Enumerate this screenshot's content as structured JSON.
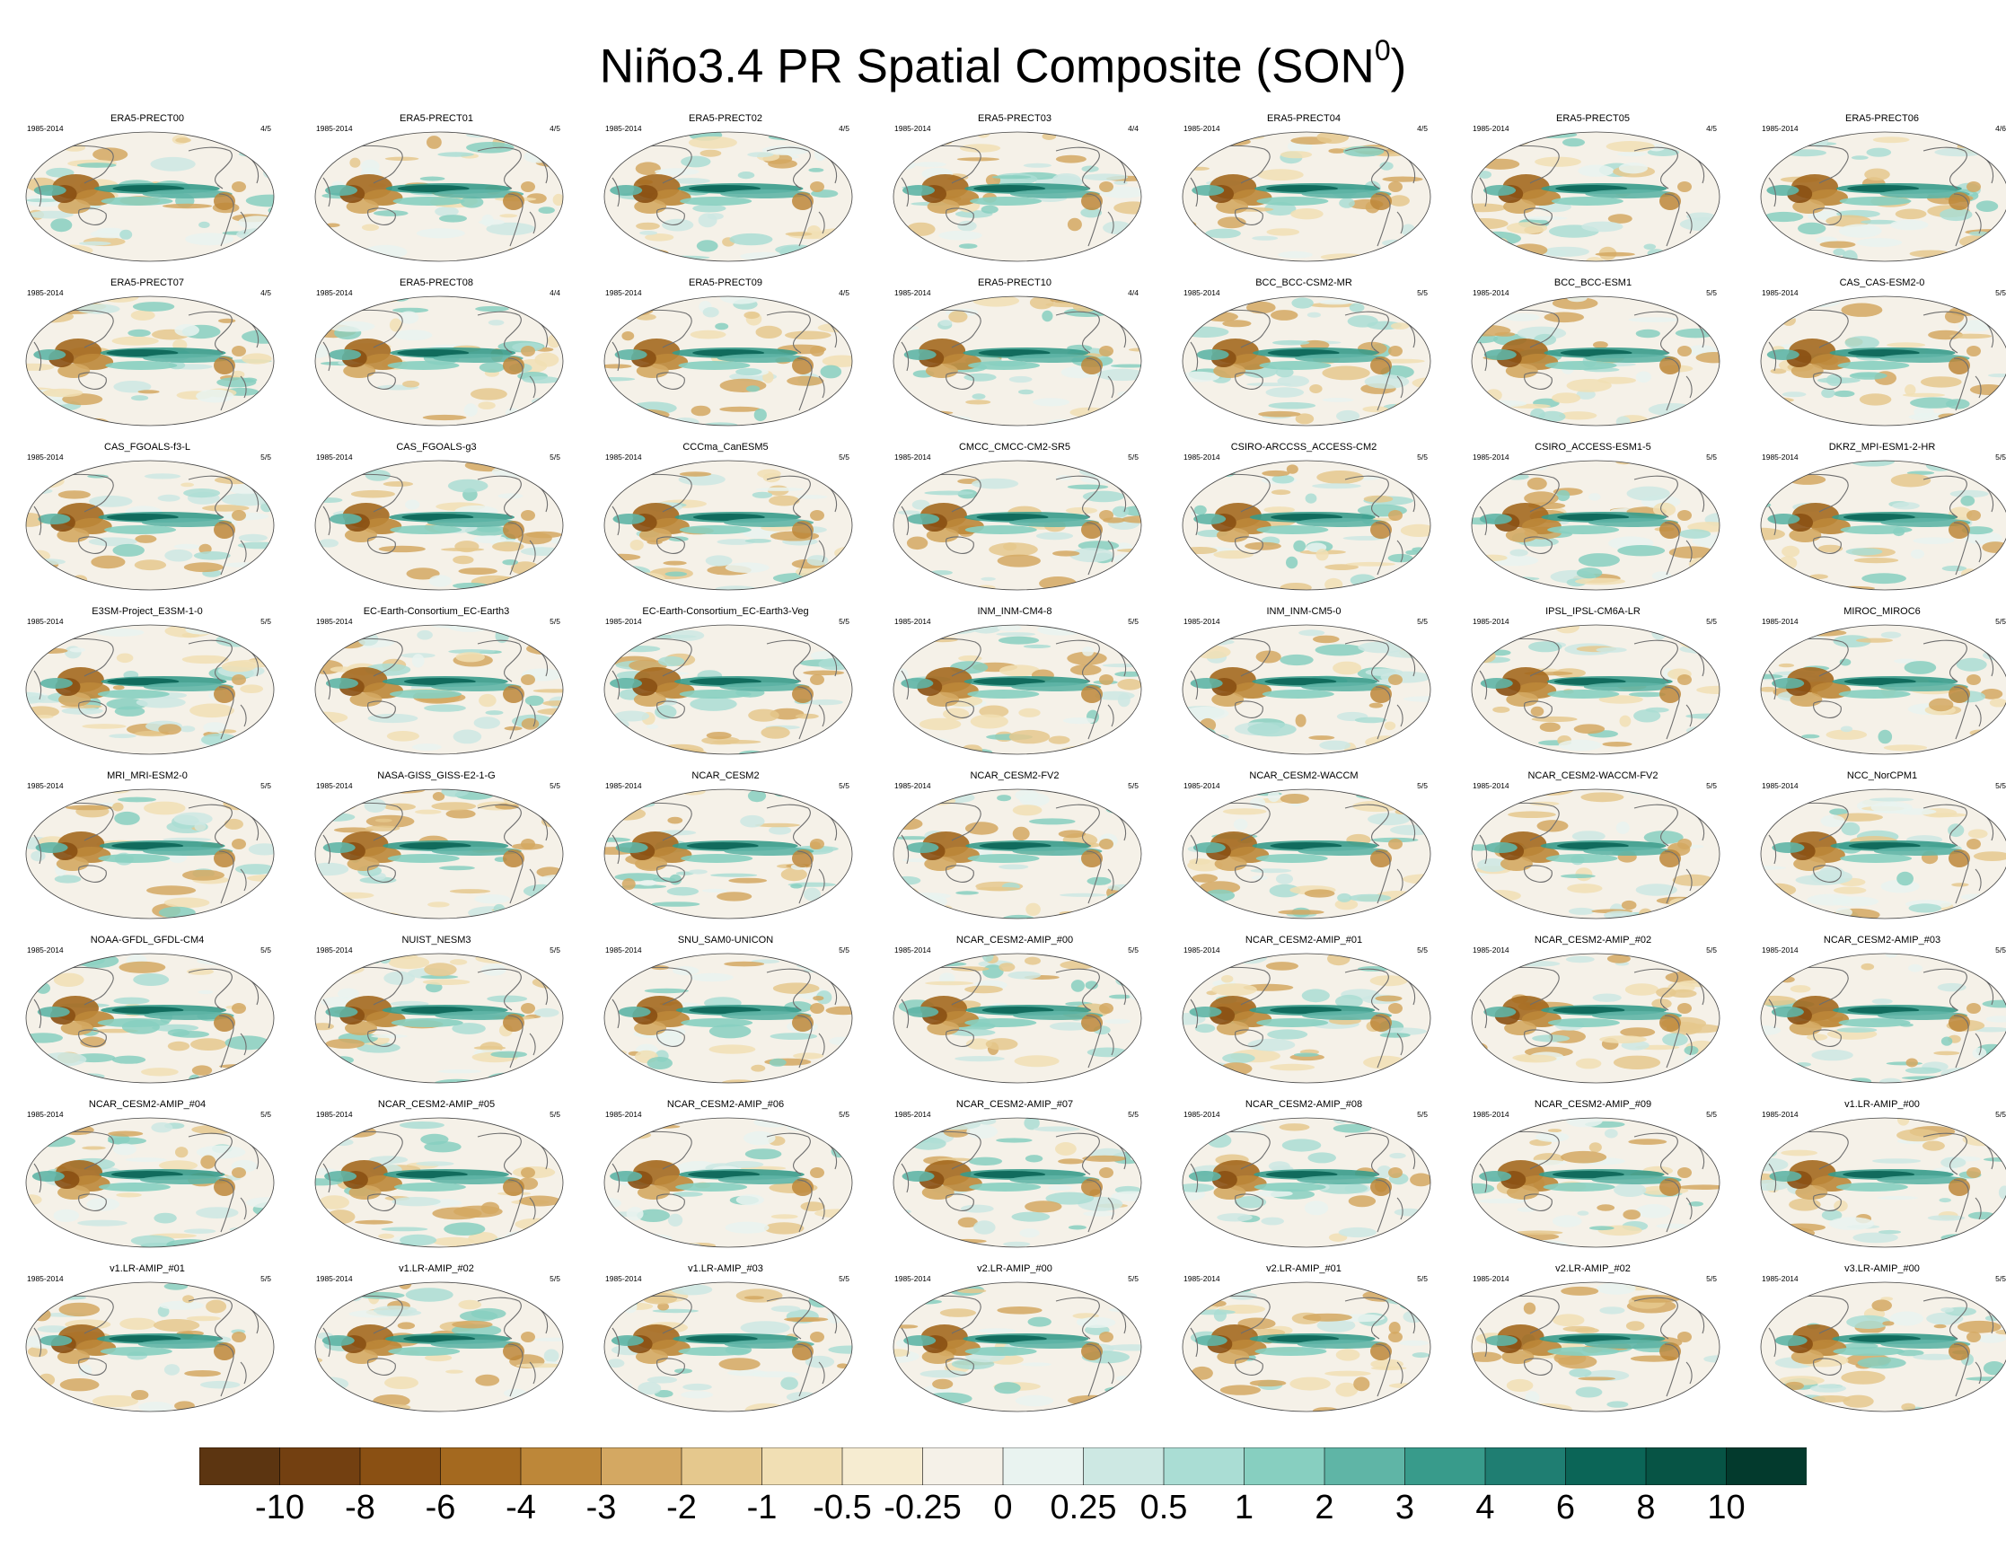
{
  "title": {
    "main": "Niño3.4 PR Spatial Composite (SON",
    "superscript": "0",
    "close": ")"
  },
  "panels": [
    {
      "name": "ERA5-PRECT00",
      "years": "1985-2014",
      "count": "4/5"
    },
    {
      "name": "ERA5-PRECT01",
      "years": "1985-2014",
      "count": "4/5"
    },
    {
      "name": "ERA5-PRECT02",
      "years": "1985-2014",
      "count": "4/5"
    },
    {
      "name": "ERA5-PRECT03",
      "years": "1985-2014",
      "count": "4/4"
    },
    {
      "name": "ERA5-PRECT04",
      "years": "1985-2014",
      "count": "4/5"
    },
    {
      "name": "ERA5-PRECT05",
      "years": "1985-2014",
      "count": "4/5"
    },
    {
      "name": "ERA5-PRECT06",
      "years": "1985-2014",
      "count": "4/6"
    },
    {
      "name": "ERA5-PRECT07",
      "years": "1985-2014",
      "count": "4/5"
    },
    {
      "name": "ERA5-PRECT08",
      "years": "1985-2014",
      "count": "4/4"
    },
    {
      "name": "ERA5-PRECT09",
      "years": "1985-2014",
      "count": "4/5"
    },
    {
      "name": "ERA5-PRECT10",
      "years": "1985-2014",
      "count": "4/4"
    },
    {
      "name": "BCC_BCC-CSM2-MR",
      "years": "1985-2014",
      "count": "5/5"
    },
    {
      "name": "BCC_BCC-ESM1",
      "years": "1985-2014",
      "count": "5/5"
    },
    {
      "name": "CAS_CAS-ESM2-0",
      "years": "1985-2014",
      "count": "5/5"
    },
    {
      "name": "CAS_FGOALS-f3-L",
      "years": "1985-2014",
      "count": "5/5"
    },
    {
      "name": "CAS_FGOALS-g3",
      "years": "1985-2014",
      "count": "5/5"
    },
    {
      "name": "CCCma_CanESM5",
      "years": "1985-2014",
      "count": "5/5"
    },
    {
      "name": "CMCC_CMCC-CM2-SR5",
      "years": "1985-2014",
      "count": "5/5"
    },
    {
      "name": "CSIRO-ARCCSS_ACCESS-CM2",
      "years": "1985-2014",
      "count": "5/5"
    },
    {
      "name": "CSIRO_ACCESS-ESM1-5",
      "years": "1985-2014",
      "count": "5/5"
    },
    {
      "name": "DKRZ_MPI-ESM1-2-HR",
      "years": "1985-2014",
      "count": "5/5"
    },
    {
      "name": "E3SM-Project_E3SM-1-0",
      "years": "1985-2014",
      "count": "5/5"
    },
    {
      "name": "EC-Earth-Consortium_EC-Earth3",
      "years": "1985-2014",
      "count": "5/5"
    },
    {
      "name": "EC-Earth-Consortium_EC-Earth3-Veg",
      "years": "1985-2014",
      "count": "5/5"
    },
    {
      "name": "INM_INM-CM4-8",
      "years": "1985-2014",
      "count": "5/5"
    },
    {
      "name": "INM_INM-CM5-0",
      "years": "1985-2014",
      "count": "5/5"
    },
    {
      "name": "IPSL_IPSL-CM6A-LR",
      "years": "1985-2014",
      "count": "5/5"
    },
    {
      "name": "MIROC_MIROC6",
      "years": "1985-2014",
      "count": "5/5"
    },
    {
      "name": "MRI_MRI-ESM2-0",
      "years": "1985-2014",
      "count": "5/5"
    },
    {
      "name": "NASA-GISS_GISS-E2-1-G",
      "years": "1985-2014",
      "count": "5/5"
    },
    {
      "name": "NCAR_CESM2",
      "years": "1985-2014",
      "count": "5/5"
    },
    {
      "name": "NCAR_CESM2-FV2",
      "years": "1985-2014",
      "count": "5/5"
    },
    {
      "name": "NCAR_CESM2-WACCM",
      "years": "1985-2014",
      "count": "5/5"
    },
    {
      "name": "NCAR_CESM2-WACCM-FV2",
      "years": "1985-2014",
      "count": "5/5"
    },
    {
      "name": "NCC_NorCPM1",
      "years": "1985-2014",
      "count": "5/5"
    },
    {
      "name": "NOAA-GFDL_GFDL-CM4",
      "years": "1985-2014",
      "count": "5/5"
    },
    {
      "name": "NUIST_NESM3",
      "years": "1985-2014",
      "count": "5/5"
    },
    {
      "name": "SNU_SAM0-UNICON",
      "years": "1985-2014",
      "count": "5/5"
    },
    {
      "name": "NCAR_CESM2-AMIP_#00",
      "years": "1985-2014",
      "count": "5/5"
    },
    {
      "name": "NCAR_CESM2-AMIP_#01",
      "years": "1985-2014",
      "count": "5/5"
    },
    {
      "name": "NCAR_CESM2-AMIP_#02",
      "years": "1985-2014",
      "count": "5/5"
    },
    {
      "name": "NCAR_CESM2-AMIP_#03",
      "years": "1985-2014",
      "count": "5/5"
    },
    {
      "name": "NCAR_CESM2-AMIP_#04",
      "years": "1985-2014",
      "count": "5/5"
    },
    {
      "name": "NCAR_CESM2-AMIP_#05",
      "years": "1985-2014",
      "count": "5/5"
    },
    {
      "name": "NCAR_CESM2-AMIP_#06",
      "years": "1985-2014",
      "count": "5/5"
    },
    {
      "name": "NCAR_CESM2-AMIP_#07",
      "years": "1985-2014",
      "count": "5/5"
    },
    {
      "name": "NCAR_CESM2-AMIP_#08",
      "years": "1985-2014",
      "count": "5/5"
    },
    {
      "name": "NCAR_CESM2-AMIP_#09",
      "years": "1985-2014",
      "count": "5/5"
    },
    {
      "name": "v1.LR-AMIP_#00",
      "years": "1985-2014",
      "count": "5/5"
    },
    {
      "name": "v1.LR-AMIP_#01",
      "years": "1985-2014",
      "count": "5/5"
    },
    {
      "name": "v1.LR-AMIP_#02",
      "years": "1985-2014",
      "count": "5/5"
    },
    {
      "name": "v1.LR-AMIP_#03",
      "years": "1985-2014",
      "count": "5/5"
    },
    {
      "name": "v2.LR-AMIP_#00",
      "years": "1985-2014",
      "count": "5/5"
    },
    {
      "name": "v2.LR-AMIP_#01",
      "years": "1985-2014",
      "count": "5/5"
    },
    {
      "name": "v2.LR-AMIP_#02",
      "years": "1985-2014",
      "count": "5/5"
    },
    {
      "name": "v3.LR-AMIP_#00",
      "years": "1985-2014",
      "count": "5/5"
    }
  ],
  "colorbar": {
    "colors": [
      "#5c3511",
      "#734011",
      "#8a5013",
      "#a4691f",
      "#bd8739",
      "#d4a862",
      "#e5c88d",
      "#f1dfb4",
      "#f6ecd1",
      "#f5f1e8",
      "#e9f3f0",
      "#cde8e3",
      "#aaddd4",
      "#87cfc0",
      "#5fb5a6",
      "#389b8b",
      "#1f7e72",
      "#0b6557",
      "#075445",
      "#033a2d"
    ],
    "labels": [
      "-10",
      "-8",
      "-6",
      "-4",
      "-3",
      "-2",
      "-1",
      "-0.5",
      "-0.25",
      "0",
      "0.25",
      "0.5",
      "1",
      "2",
      "3",
      "4",
      "6",
      "8",
      "10"
    ]
  }
}
